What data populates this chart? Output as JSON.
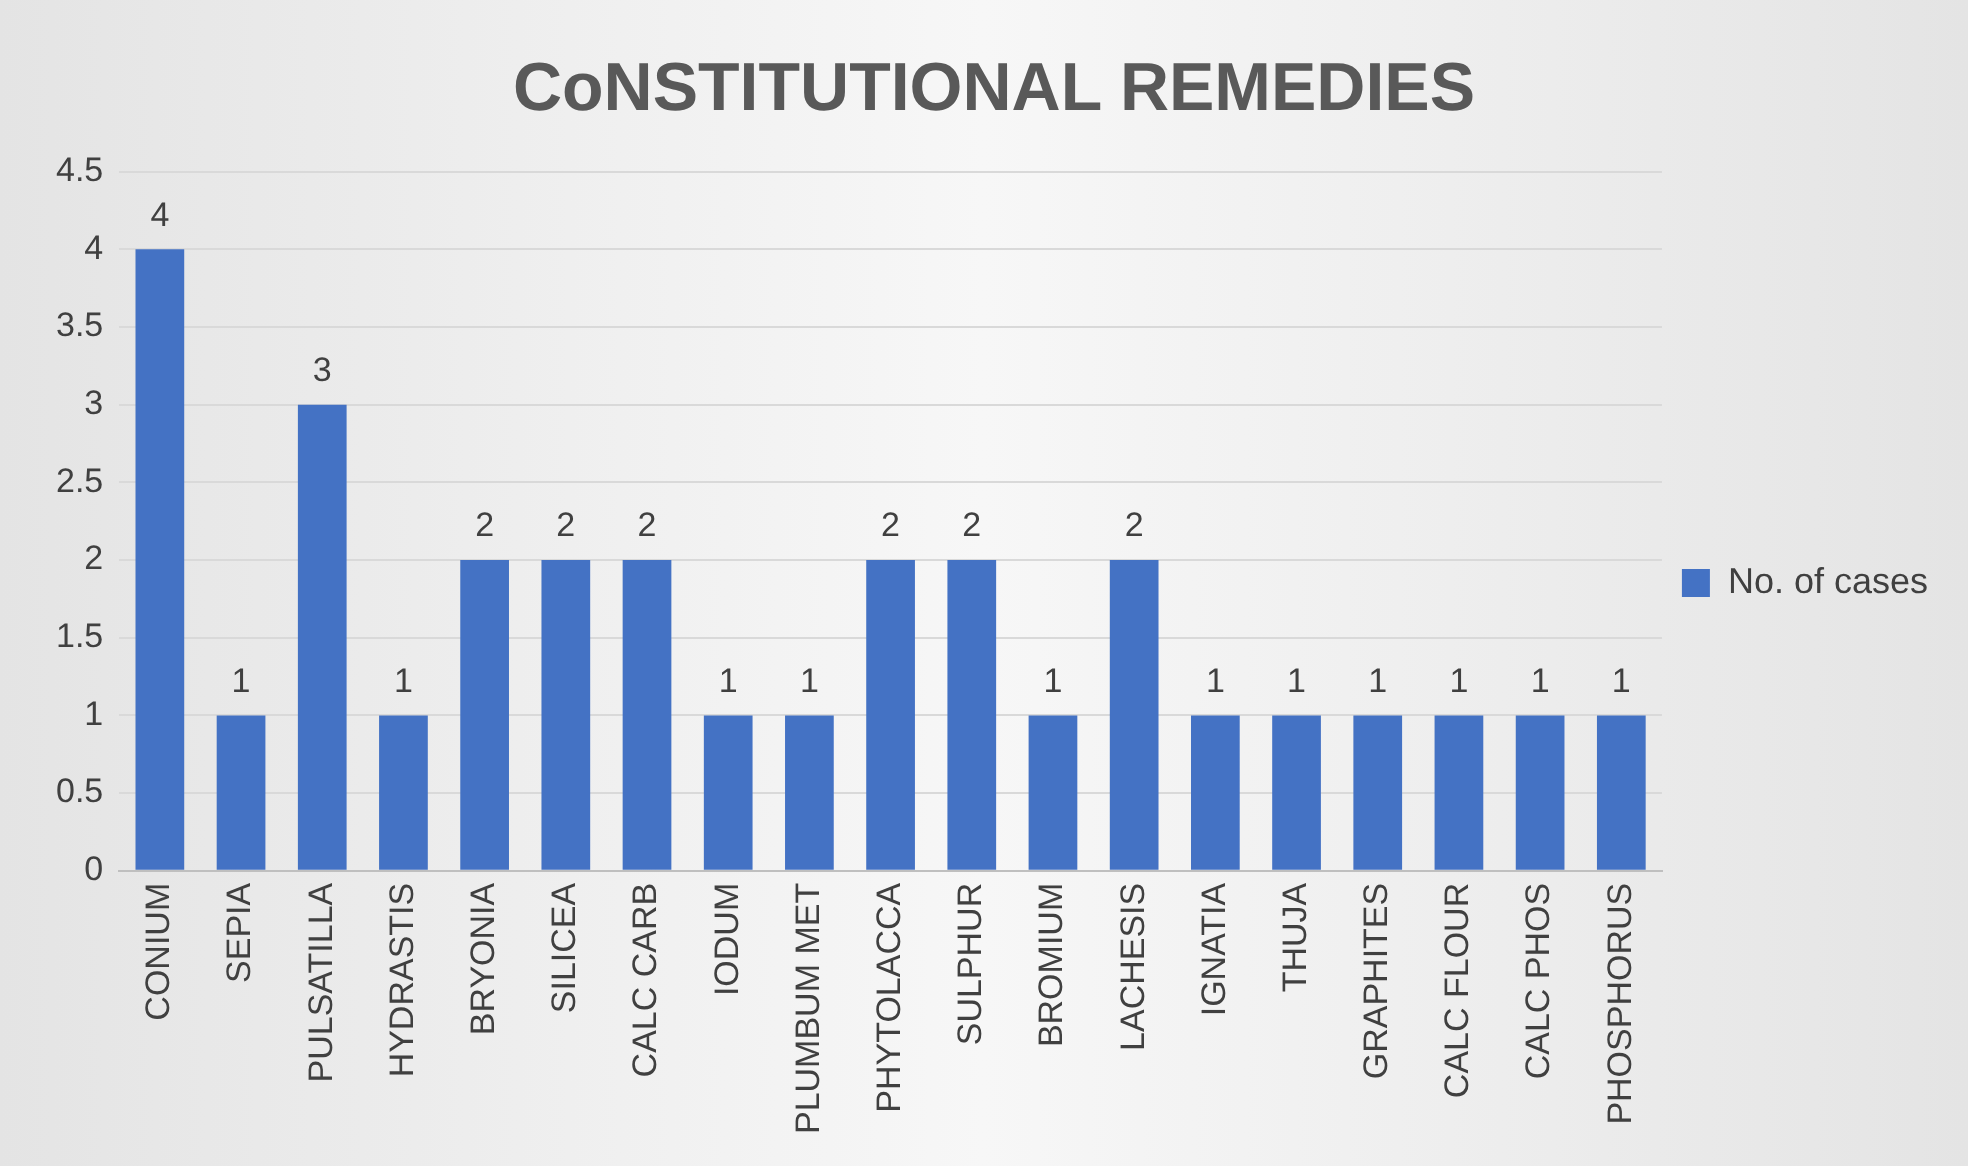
{
  "chart_data": {
    "type": "bar",
    "title": "CoNSTITUTIONAL REMEDIES",
    "categories": [
      "CONIUM",
      "SEPIA",
      "PULSATILLA",
      "HYDRASTIS",
      "BRYONIA",
      "SILICEA",
      "CALC CARB",
      "IODUM",
      "PLUMBUM MET",
      "PHYTOLACCA",
      "SULPHUR",
      "BROMIUM",
      "LACHESIS",
      "IGNATIA",
      "THUJA",
      "GRAPHITES",
      "CALC FLOUR",
      "CALC PHOS",
      "PHOSPHORUS"
    ],
    "series": [
      {
        "name": "No. of cases",
        "color": "#4472c4",
        "values": [
          4,
          1,
          3,
          1,
          2,
          2,
          2,
          1,
          1,
          2,
          2,
          1,
          2,
          1,
          1,
          1,
          1,
          1,
          1
        ]
      }
    ],
    "ylim": [
      0,
      4.5
    ],
    "yticks": [
      0,
      0.5,
      1,
      1.5,
      2,
      2.5,
      3,
      3.5,
      4,
      4.5
    ],
    "grid": "y",
    "legend": "right",
    "data_labels": true
  }
}
